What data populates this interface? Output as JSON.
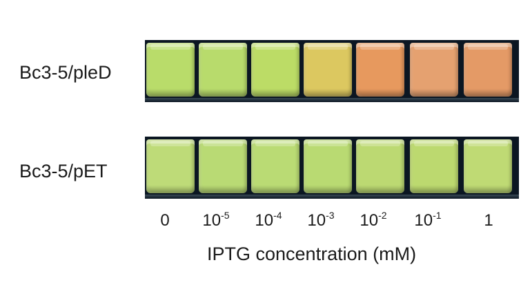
{
  "rows": [
    {
      "label": "Bc3-5/pleD",
      "tube_colors": [
        "#b9dc6a",
        "#b8db6c",
        "#bcdc66",
        "#dcc860",
        "#e7995e",
        "#e5a170",
        "#e49a66"
      ]
    },
    {
      "label": "Bc3-5/pET",
      "tube_colors": [
        "#bedb78",
        "#b9da74",
        "#badb74",
        "#b9da72",
        "#bcd972",
        "#bcd96f",
        "#bfda74"
      ]
    }
  ],
  "x_ticks": [
    {
      "base": "0",
      "exp": ""
    },
    {
      "base": "10",
      "exp": "-5"
    },
    {
      "base": "10",
      "exp": "-4"
    },
    {
      "base": "10",
      "exp": "-3"
    },
    {
      "base": "10",
      "exp": "-2"
    },
    {
      "base": "10",
      "exp": "-1"
    },
    {
      "base": "1",
      "exp": ""
    }
  ],
  "x_title": "IPTG concentration (mM)"
}
